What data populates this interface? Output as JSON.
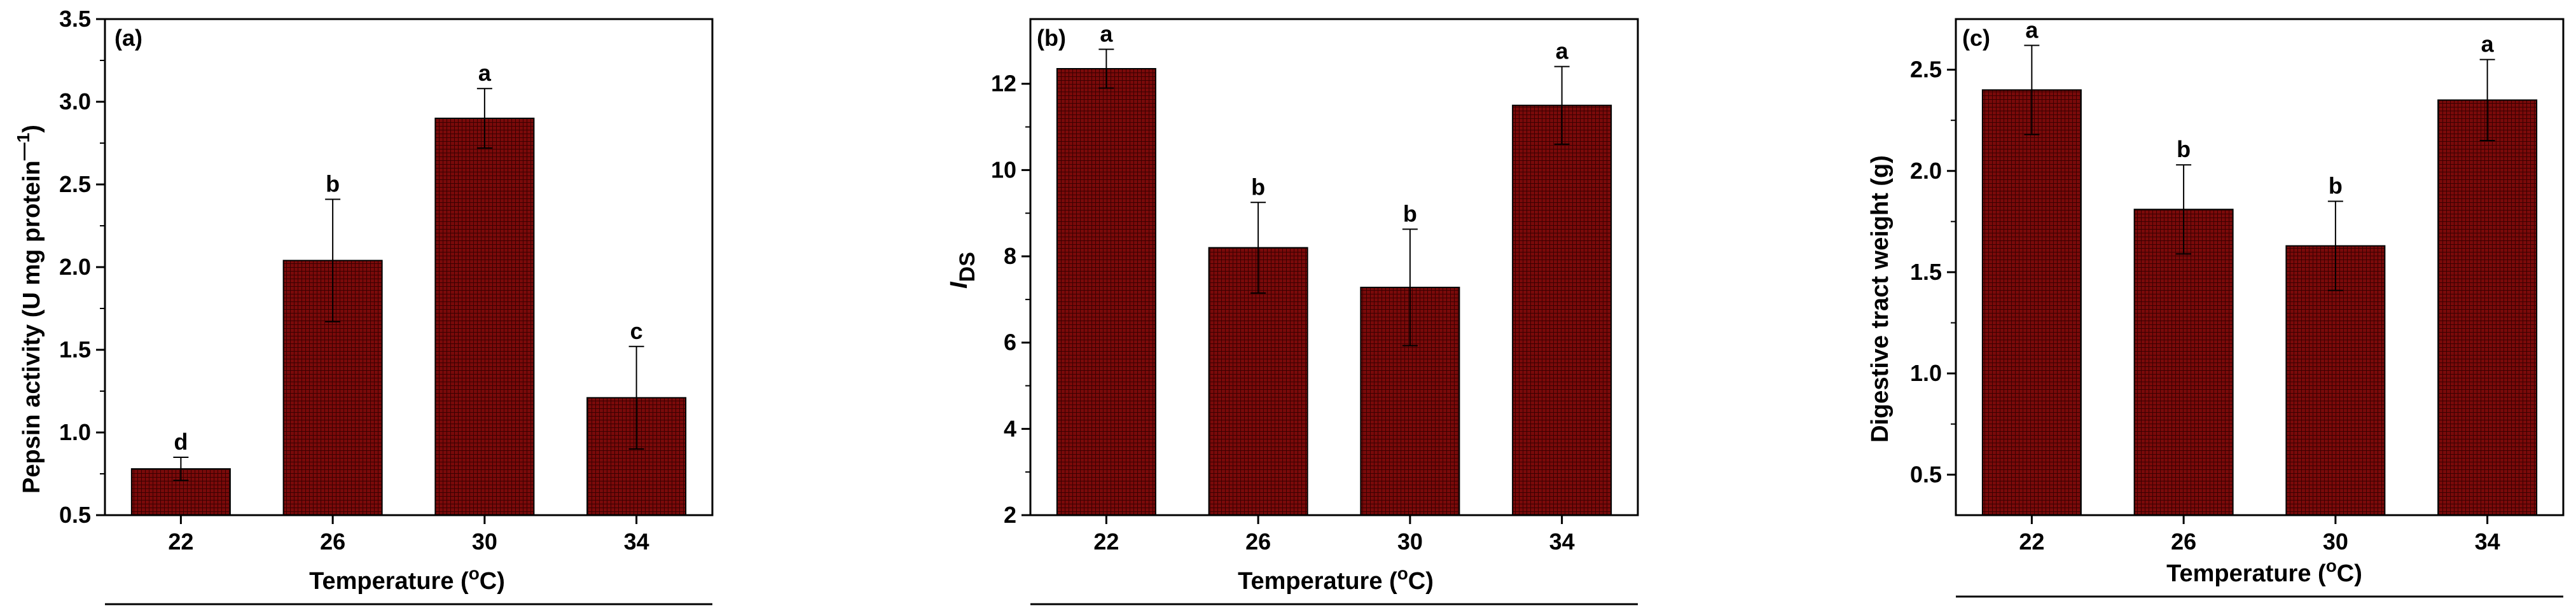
{
  "figure": {
    "fill_color": "#7a0a0a",
    "grid_color": "#3a0000",
    "panels_label": "Three bar charts of pepsin activity, I_DS and digestive tract weight vs temperature"
  },
  "chart_data": [
    {
      "type": "bar",
      "panel_tag": "(a)",
      "categories": [
        "22",
        "26",
        "30",
        "34"
      ],
      "values": [
        0.78,
        2.04,
        2.9,
        1.21
      ],
      "errors": [
        0.07,
        0.37,
        0.18,
        0.31
      ],
      "letters": [
        "d",
        "b",
        "a",
        "c"
      ],
      "xlabel_prefix": "Temperature (",
      "xlabel_sup": "o",
      "xlabel_suffix": "C)",
      "ylabel": "Pepsin activity (U mg protein",
      "ylabel_sup": "—1",
      "ylabel_close": ")",
      "ylim": [
        0.5,
        3.5
      ],
      "yticks": [
        "0.5",
        "1.0",
        "1.5",
        "2.0",
        "2.5",
        "3.0",
        "3.5"
      ],
      "ytick_values": [
        0.5,
        1.0,
        1.5,
        2.0,
        2.5,
        3.0,
        3.5
      ]
    },
    {
      "type": "bar",
      "panel_tag": "(b)",
      "categories": [
        "22",
        "26",
        "30",
        "34"
      ],
      "values": [
        12.35,
        8.2,
        7.28,
        11.5
      ],
      "errors": [
        0.45,
        1.05,
        1.35,
        0.9
      ],
      "letters": [
        "a",
        "b",
        "b",
        "a"
      ],
      "xlabel_prefix": "Temperature (",
      "xlabel_sup": "o",
      "xlabel_suffix": "C)",
      "ylabel_main": "I",
      "ylabel_sub": "DS",
      "ylim": [
        2,
        13.5
      ],
      "yticks": [
        "2",
        "4",
        "6",
        "8",
        "10",
        "12"
      ],
      "ytick_values": [
        2,
        4,
        6,
        8,
        10,
        12
      ]
    },
    {
      "type": "bar",
      "panel_tag": "(c)",
      "categories": [
        "22",
        "26",
        "30",
        "34"
      ],
      "values": [
        2.4,
        1.81,
        1.63,
        2.35
      ],
      "errors": [
        0.22,
        0.22,
        0.22,
        0.2
      ],
      "letters": [
        "a",
        "b",
        "b",
        "a"
      ],
      "xlabel_prefix": "Temperature (",
      "xlabel_sup": "o",
      "xlabel_suffix": "C)",
      "ylabel": "Digestive tract weight (g)",
      "ylim": [
        0.3,
        2.75
      ],
      "yticks": [
        "0.5",
        "1.0",
        "1.5",
        "2.0",
        "2.5"
      ],
      "ytick_values": [
        0.5,
        1.0,
        1.5,
        2.0,
        2.5
      ]
    }
  ]
}
